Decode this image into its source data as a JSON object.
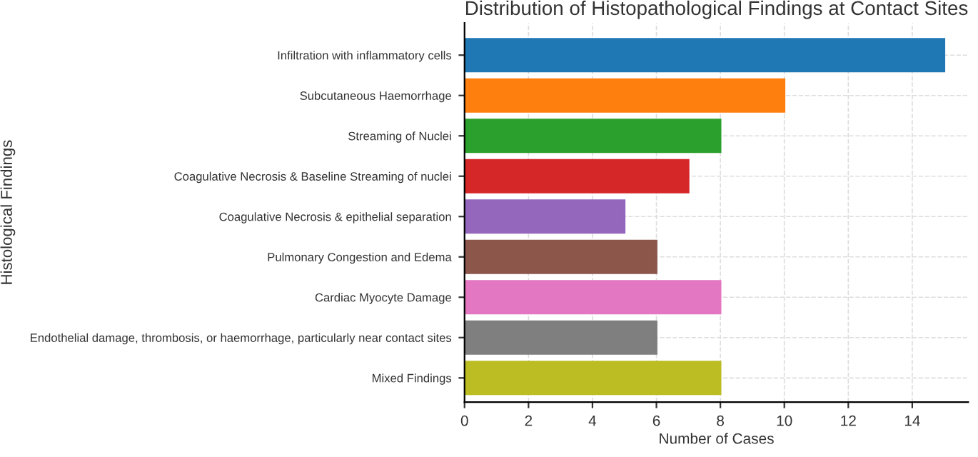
{
  "chart_data": {
    "type": "bar",
    "orientation": "horizontal",
    "title": "Distribution of Histopathological Findings at Contact Sites",
    "xlabel": "Number of Cases",
    "ylabel": "Histological Findings",
    "categories": [
      "Infiltration with inflammatory cells",
      "Subcutaneous Haemorrhage",
      "Streaming of Nuclei",
      "Coagulative Necrosis & Baseline Streaming of nuclei",
      "Coagulative Necrosis & epithelial separation",
      "Pulmonary Congestion and Edema",
      "Cardiac Myocyte Damage",
      "Endothelial damage, thrombosis, or haemorrhage, particularly near contact sites",
      "Mixed Findings"
    ],
    "values": [
      15,
      10,
      8,
      7,
      5,
      6,
      8,
      6,
      8
    ],
    "colors": [
      "#1f77b4",
      "#ff7f0e",
      "#2ca02c",
      "#d62728",
      "#9467bd",
      "#8c564b",
      "#e377c2",
      "#7f7f7f",
      "#bcbd22"
    ],
    "xlim": [
      0,
      15.75
    ],
    "xticks": [
      0,
      2,
      4,
      6,
      8,
      10,
      12,
      14
    ],
    "grid": true,
    "line_style": "dashed"
  }
}
